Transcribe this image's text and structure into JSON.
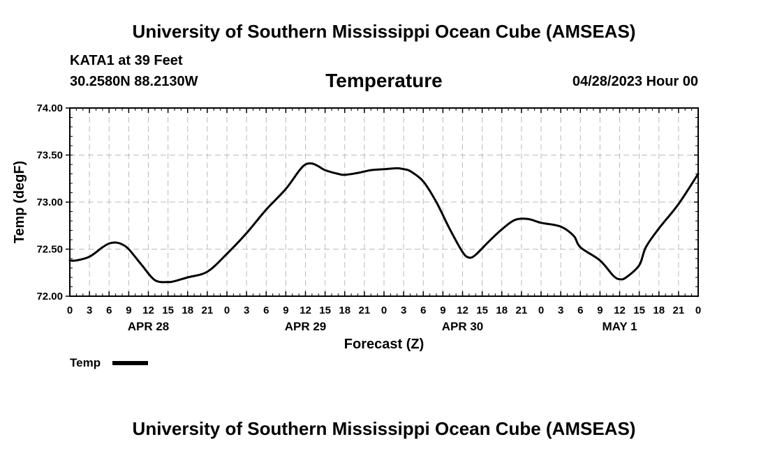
{
  "header": {
    "title": "University of Southern Mississippi Ocean Cube (AMSEAS)",
    "station": "KATA1 at 39 Feet",
    "coords": "30.2580N  88.2130W",
    "valid_time": "04/28/2023 Hour 00"
  },
  "footer": {
    "title": "University of Southern Mississippi Ocean Cube (AMSEAS)"
  },
  "chart_data": {
    "type": "line",
    "title": "Temperature",
    "xlabel": "Forecast (Z)",
    "ylabel": "Temp (degF)",
    "ylim": [
      72.0,
      74.0
    ],
    "yticks": [
      "72.00",
      "72.50",
      "73.00",
      "73.50",
      "74.00"
    ],
    "xlim": [
      0,
      96
    ],
    "xtick_labels": [
      "0",
      "3",
      "6",
      "9",
      "12",
      "15",
      "18",
      "21",
      "0",
      "3",
      "6",
      "9",
      "12",
      "15",
      "18",
      "21",
      "0",
      "3",
      "6",
      "9",
      "12",
      "15",
      "18",
      "21",
      "0",
      "3",
      "6",
      "9",
      "12",
      "15",
      "18",
      "21",
      "0"
    ],
    "day_labels": [
      {
        "label": "APR 28",
        "hour": 12
      },
      {
        "label": "APR 29",
        "hour": 36
      },
      {
        "label": "APR 30",
        "hour": 60
      },
      {
        "label": "MAY 1",
        "hour": 84
      }
    ],
    "grid": true,
    "legend": "bottom-left",
    "series": [
      {
        "name": "Temp",
        "color": "#000000",
        "x": [
          0,
          1,
          3,
          5,
          6,
          7,
          8,
          9,
          11,
          13,
          15,
          16,
          18,
          21,
          24,
          27,
          30,
          33,
          35,
          36,
          37,
          38,
          39,
          41,
          42,
          44,
          46,
          48,
          50,
          51,
          52,
          54,
          56,
          58,
          60,
          61,
          62,
          64,
          66,
          68,
          70,
          72,
          75,
          77,
          78,
          81,
          83,
          84,
          85,
          87,
          88,
          90,
          93,
          96
        ],
        "values": [
          72.38,
          72.38,
          72.42,
          72.52,
          72.56,
          72.57,
          72.55,
          72.5,
          72.33,
          72.17,
          72.15,
          72.16,
          72.2,
          72.26,
          72.45,
          72.67,
          72.92,
          73.14,
          73.33,
          73.4,
          73.41,
          73.38,
          73.34,
          73.3,
          73.29,
          73.31,
          73.34,
          73.35,
          73.36,
          73.35,
          73.33,
          73.22,
          73.0,
          72.72,
          72.47,
          72.41,
          72.44,
          72.58,
          72.71,
          72.81,
          72.82,
          72.78,
          72.74,
          72.64,
          72.52,
          72.38,
          72.22,
          72.18,
          72.2,
          72.33,
          72.52,
          72.72,
          72.98,
          73.3
        ]
      }
    ]
  }
}
